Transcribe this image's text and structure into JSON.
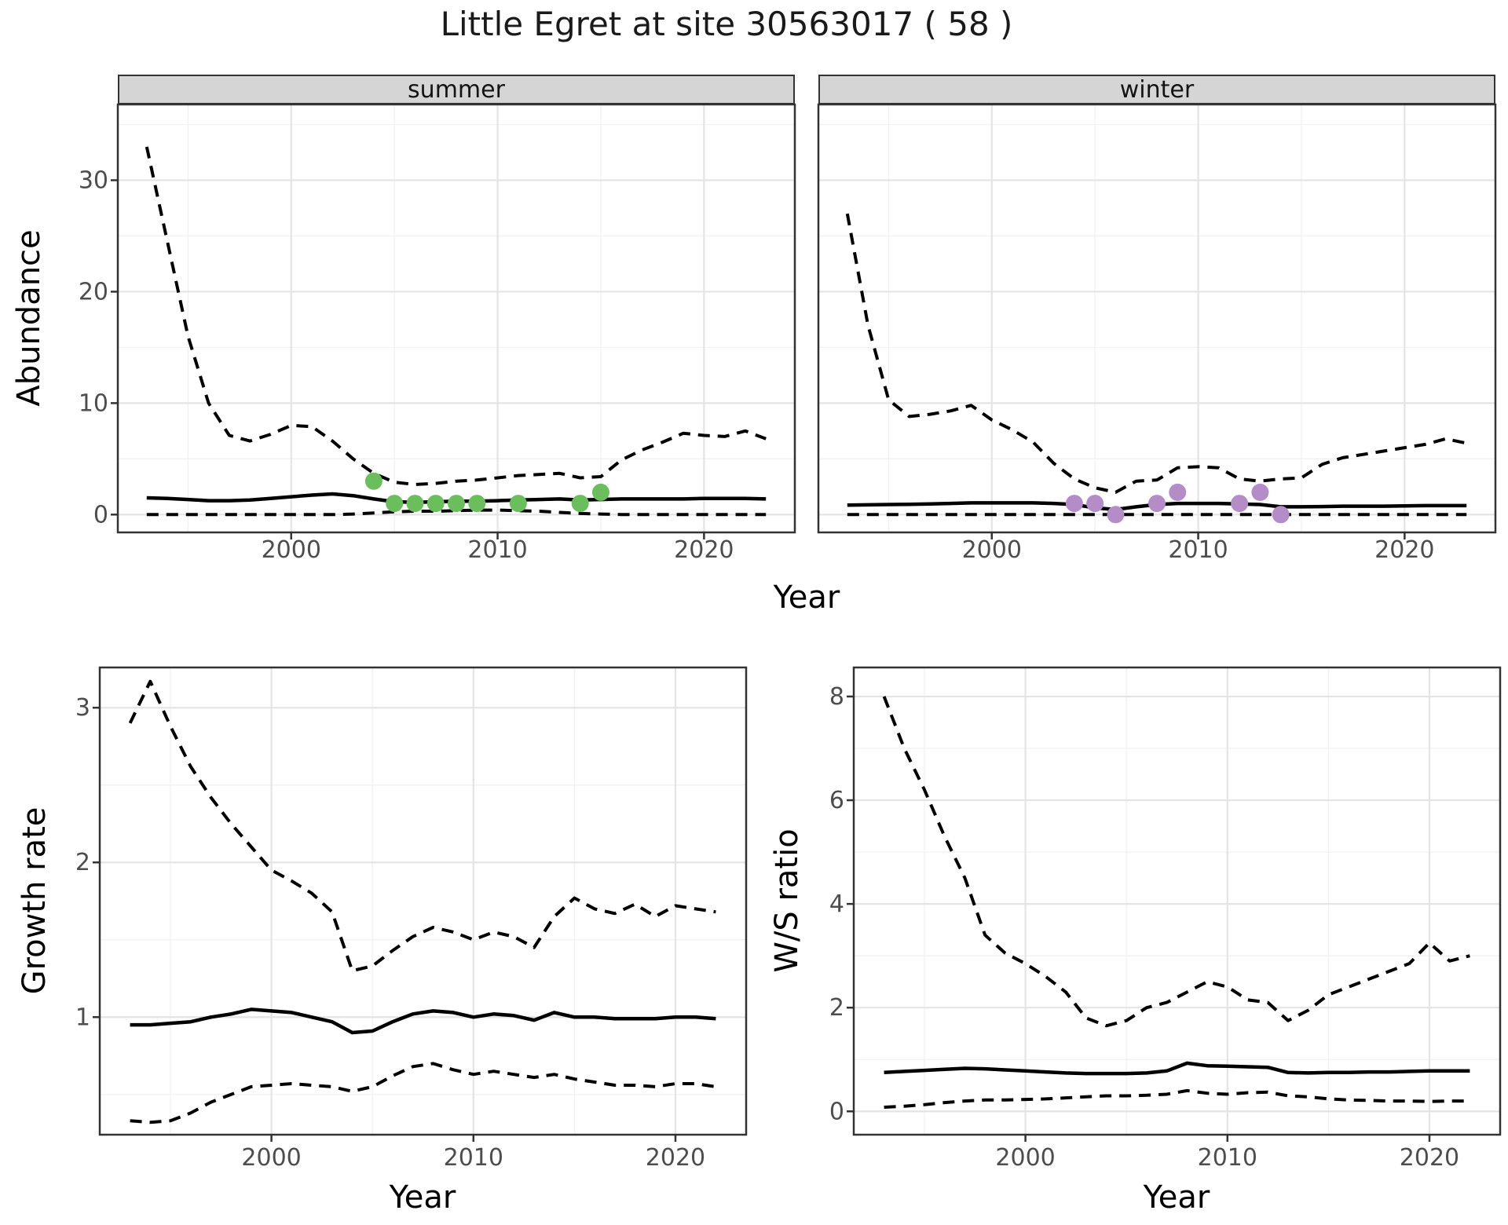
{
  "title": "Little Egret at site 30563017 ( 58 )",
  "facet_labels": [
    "summer",
    "winter"
  ],
  "axis_labels": {
    "abundance": "Abundance",
    "year": "Year",
    "growth_rate": "Growth rate",
    "ws_ratio": "W/S ratio"
  },
  "colors": {
    "summer_point": "#6abf5c",
    "winter_point": "#b48cc8",
    "line": "#000000",
    "strip_bg": "#d5d5d5",
    "panel_border": "#333333",
    "grid_major": "#e4e4e4",
    "grid_minor": "#f1f1f1",
    "tick_label": "#4d4d4d"
  },
  "chart_data": [
    {
      "id": "abundance-summer",
      "type": "line",
      "facet": "summer",
      "xlabel": "Year",
      "ylabel": "Abundance",
      "x": [
        1993,
        1994,
        1995,
        1996,
        1997,
        1998,
        1999,
        2000,
        2001,
        2002,
        2003,
        2004,
        2005,
        2006,
        2007,
        2008,
        2009,
        2010,
        2011,
        2012,
        2013,
        2014,
        2015,
        2016,
        2017,
        2018,
        2019,
        2020,
        2021,
        2022,
        2023
      ],
      "series": [
        {
          "name": "upper-95-ci",
          "style": "dashed",
          "values": [
            33,
            24.5,
            16,
            10,
            7.1,
            6.6,
            7.2,
            8.0,
            7.9,
            6.6,
            5.0,
            3.7,
            2.9,
            2.7,
            2.8,
            3.0,
            3.1,
            3.3,
            3.5,
            3.6,
            3.7,
            3.3,
            3.4,
            4.9,
            5.8,
            6.5,
            7.3,
            7.1,
            7.0,
            7.5,
            6.8
          ]
        },
        {
          "name": "median",
          "style": "solid",
          "values": [
            1.5,
            1.45,
            1.35,
            1.25,
            1.25,
            1.3,
            1.45,
            1.6,
            1.75,
            1.85,
            1.7,
            1.4,
            1.15,
            1.1,
            1.15,
            1.2,
            1.2,
            1.25,
            1.3,
            1.35,
            1.4,
            1.3,
            1.35,
            1.4,
            1.4,
            1.4,
            1.4,
            1.45,
            1.45,
            1.45,
            1.4
          ]
        },
        {
          "name": "lower-95-ci",
          "style": "dashed",
          "values": [
            0,
            0,
            0,
            0,
            0,
            0,
            0,
            0,
            0,
            0,
            0.05,
            0.15,
            0.25,
            0.3,
            0.3,
            0.35,
            0.4,
            0.4,
            0.35,
            0.3,
            0.2,
            0.1,
            0.05,
            0,
            0,
            0,
            0,
            0,
            0,
            0,
            0
          ]
        }
      ],
      "points": {
        "name": "summer-observations",
        "color": "#6abf5c",
        "data": [
          [
            2004,
            3
          ],
          [
            2005,
            1
          ],
          [
            2006,
            1
          ],
          [
            2007,
            1
          ],
          [
            2008,
            1
          ],
          [
            2009,
            1
          ],
          [
            2011,
            1
          ],
          [
            2014,
            1
          ],
          [
            2015,
            2
          ]
        ]
      },
      "xticks": [
        2000,
        2010,
        2020
      ],
      "yticks": [
        0,
        10,
        20,
        30
      ],
      "minor_xticks": [
        1995,
        2005,
        2015
      ],
      "minor_yticks": [
        5,
        15,
        25,
        35
      ],
      "xlim": [
        1991.6,
        2024.4
      ],
      "ylim": [
        -1.6,
        36.8
      ],
      "grid": true,
      "legend": "none"
    },
    {
      "id": "abundance-winter",
      "type": "line",
      "facet": "winter",
      "xlabel": "Year",
      "ylabel": "Abundance",
      "x": [
        1993,
        1994,
        1995,
        1996,
        1997,
        1998,
        1999,
        2000,
        2001,
        2002,
        2003,
        2004,
        2005,
        2006,
        2007,
        2008,
        2009,
        2010,
        2011,
        2012,
        2013,
        2014,
        2015,
        2016,
        2017,
        2018,
        2019,
        2020,
        2021,
        2022,
        2023
      ],
      "series": [
        {
          "name": "upper-95-ci",
          "style": "dashed",
          "values": [
            27,
            17,
            10.3,
            8.8,
            9.0,
            9.3,
            9.8,
            8.5,
            7.6,
            6.5,
            4.6,
            3.2,
            2.4,
            2.0,
            3.0,
            3.1,
            4.2,
            4.3,
            4.2,
            3.2,
            3.0,
            3.2,
            3.3,
            4.5,
            5.1,
            5.4,
            5.7,
            6.0,
            6.3,
            6.8,
            6.4
          ]
        },
        {
          "name": "median",
          "style": "solid",
          "values": [
            0.85,
            0.87,
            0.9,
            0.92,
            0.95,
            1.0,
            1.05,
            1.05,
            1.05,
            1.05,
            1.0,
            0.9,
            0.6,
            0.45,
            0.7,
            0.9,
            1.0,
            1.0,
            1.0,
            0.95,
            0.9,
            0.7,
            0.7,
            0.72,
            0.75,
            0.75,
            0.75,
            0.78,
            0.8,
            0.8,
            0.8
          ]
        },
        {
          "name": "lower-95-ci",
          "style": "dashed",
          "values": [
            0,
            0,
            0,
            0,
            0,
            0,
            0,
            0,
            0,
            0,
            0,
            0,
            0,
            0,
            0,
            0,
            0,
            0,
            0,
            0,
            0,
            0,
            0,
            0,
            0,
            0,
            0,
            0,
            0,
            0,
            0
          ]
        }
      ],
      "points": {
        "name": "winter-observations",
        "color": "#b48cc8",
        "data": [
          [
            2004,
            1
          ],
          [
            2005,
            1
          ],
          [
            2006,
            0
          ],
          [
            2008,
            1
          ],
          [
            2009,
            2
          ],
          [
            2012,
            1
          ],
          [
            2013,
            2
          ],
          [
            2014,
            0
          ]
        ]
      },
      "xticks": [
        2000,
        2010,
        2020
      ],
      "yticks": [
        0,
        10,
        20,
        30
      ],
      "minor_xticks": [
        1995,
        2005,
        2015
      ],
      "minor_yticks": [
        5,
        15,
        25,
        35
      ],
      "xlim": [
        1991.6,
        2024.4
      ],
      "ylim": [
        -1.6,
        36.8
      ],
      "grid": true,
      "legend": "none"
    },
    {
      "id": "growth-rate",
      "type": "line",
      "facet": "",
      "xlabel": "Year",
      "ylabel": "Growth rate",
      "x": [
        1993,
        1994,
        1995,
        1996,
        1997,
        1998,
        1999,
        2000,
        2001,
        2002,
        2003,
        2004,
        2005,
        2006,
        2007,
        2008,
        2009,
        2010,
        2011,
        2012,
        2013,
        2014,
        2015,
        2016,
        2017,
        2018,
        2019,
        2020,
        2021,
        2022
      ],
      "series": [
        {
          "name": "upper-95-ci",
          "style": "dashed",
          "values": [
            2.9,
            3.17,
            2.88,
            2.62,
            2.42,
            2.25,
            2.1,
            1.95,
            1.88,
            1.8,
            1.68,
            1.3,
            1.33,
            1.43,
            1.52,
            1.58,
            1.55,
            1.5,
            1.55,
            1.52,
            1.45,
            1.65,
            1.77,
            1.7,
            1.67,
            1.73,
            1.65,
            1.72,
            1.7,
            1.68
          ]
        },
        {
          "name": "median",
          "style": "solid",
          "values": [
            0.95,
            0.95,
            0.96,
            0.97,
            1.0,
            1.02,
            1.05,
            1.04,
            1.03,
            1.0,
            0.97,
            0.9,
            0.91,
            0.97,
            1.02,
            1.04,
            1.03,
            1.0,
            1.02,
            1.01,
            0.98,
            1.03,
            1.0,
            1.0,
            0.99,
            0.99,
            0.99,
            1.0,
            1.0,
            0.99
          ]
        },
        {
          "name": "lower-95-ci",
          "style": "dashed",
          "values": [
            0.33,
            0.32,
            0.33,
            0.38,
            0.45,
            0.5,
            0.55,
            0.56,
            0.57,
            0.56,
            0.55,
            0.52,
            0.55,
            0.62,
            0.68,
            0.7,
            0.66,
            0.63,
            0.65,
            0.63,
            0.61,
            0.63,
            0.6,
            0.58,
            0.56,
            0.56,
            0.55,
            0.57,
            0.57,
            0.55
          ]
        }
      ],
      "points": null,
      "xticks": [
        2000,
        2010,
        2020
      ],
      "yticks": [
        1,
        2,
        3
      ],
      "minor_xticks": [
        1995,
        2005,
        2015
      ],
      "minor_yticks": [
        0.5,
        1.5,
        2.5
      ],
      "xlim": [
        1991.5,
        2023.5
      ],
      "ylim": [
        0.24,
        3.26
      ],
      "grid": true,
      "legend": "none"
    },
    {
      "id": "ws-ratio",
      "type": "line",
      "facet": "",
      "xlabel": "Year",
      "ylabel": "W/S ratio",
      "x": [
        1993,
        1994,
        1995,
        1996,
        1997,
        1998,
        1999,
        2000,
        2001,
        2002,
        2003,
        2004,
        2005,
        2006,
        2007,
        2008,
        2009,
        2010,
        2011,
        2012,
        2013,
        2014,
        2015,
        2016,
        2017,
        2018,
        2019,
        2020,
        2021,
        2022
      ],
      "series": [
        {
          "name": "upper-95-ci",
          "style": "dashed",
          "values": [
            8.0,
            7.0,
            6.2,
            5.3,
            4.5,
            3.4,
            3.05,
            2.85,
            2.6,
            2.3,
            1.8,
            1.65,
            1.75,
            2.0,
            2.1,
            2.3,
            2.5,
            2.4,
            2.15,
            2.1,
            1.75,
            1.95,
            2.25,
            2.4,
            2.55,
            2.7,
            2.85,
            3.25,
            2.9,
            3.0
          ]
        },
        {
          "name": "median",
          "style": "solid",
          "values": [
            0.75,
            0.77,
            0.79,
            0.81,
            0.83,
            0.82,
            0.8,
            0.78,
            0.76,
            0.74,
            0.73,
            0.73,
            0.73,
            0.74,
            0.78,
            0.93,
            0.88,
            0.87,
            0.86,
            0.85,
            0.75,
            0.74,
            0.75,
            0.75,
            0.76,
            0.76,
            0.77,
            0.78,
            0.78,
            0.78
          ]
        },
        {
          "name": "lower-95-ci",
          "style": "dashed",
          "values": [
            0.08,
            0.1,
            0.13,
            0.17,
            0.2,
            0.22,
            0.22,
            0.23,
            0.24,
            0.26,
            0.28,
            0.3,
            0.3,
            0.31,
            0.33,
            0.4,
            0.35,
            0.33,
            0.36,
            0.37,
            0.3,
            0.28,
            0.24,
            0.22,
            0.21,
            0.2,
            0.2,
            0.19,
            0.2,
            0.2
          ]
        }
      ],
      "points": null,
      "xticks": [
        2000,
        2010,
        2020
      ],
      "yticks": [
        0,
        2,
        4,
        6,
        8
      ],
      "minor_xticks": [
        1995,
        2005,
        2015
      ],
      "minor_yticks": [
        1,
        3,
        5,
        7
      ],
      "xlim": [
        1991.5,
        2023.5
      ],
      "ylim": [
        -0.45,
        8.56
      ],
      "grid": true,
      "legend": "none"
    }
  ]
}
